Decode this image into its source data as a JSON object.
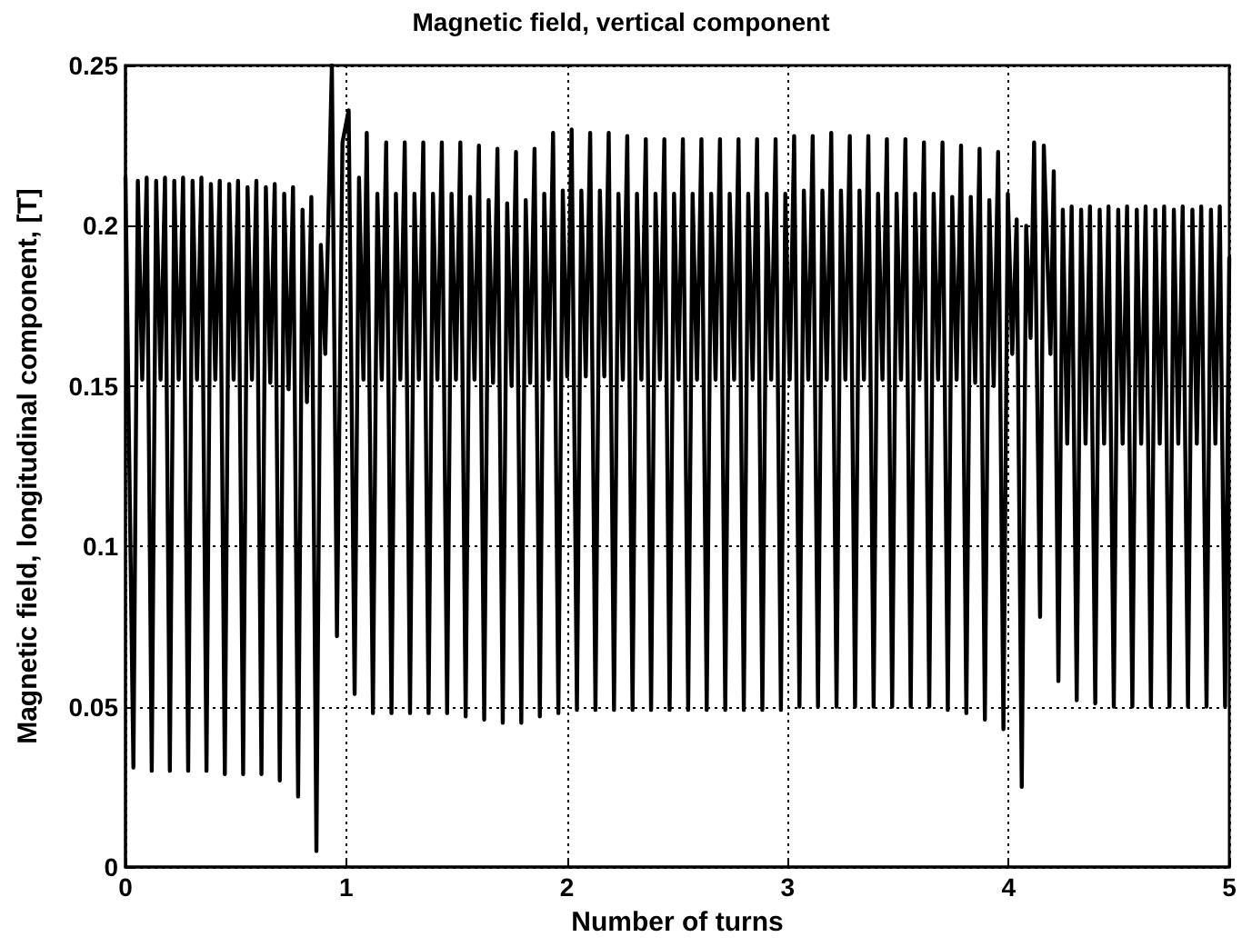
{
  "chart_data": {
    "type": "line",
    "title": "Magnetic field, vertical component",
    "xlabel": "Number of turns",
    "ylabel": "Magnetic field, longitudinal component, [T]",
    "xlim": [
      0,
      5
    ],
    "xticks": [
      0,
      1,
      2,
      3,
      4,
      5
    ],
    "ylim": [
      0,
      0.25
    ],
    "yticks": [
      0,
      0.05,
      0.1,
      0.15,
      0.2,
      0.25
    ],
    "grid": true,
    "marker": "none",
    "line_style": "solid",
    "series": [
      {
        "color": "#000000",
        "x": [
          0,
          0.036,
          0.056,
          0.076,
          0.096,
          0.119,
          0.139,
          0.159,
          0.179,
          0.201,
          0.221,
          0.241,
          0.261,
          0.284,
          0.304,
          0.324,
          0.344,
          0.367,
          0.387,
          0.407,
          0.427,
          0.45,
          0.47,
          0.49,
          0.51,
          0.533,
          0.553,
          0.573,
          0.593,
          0.616,
          0.636,
          0.656,
          0.676,
          0.699,
          0.719,
          0.739,
          0.759,
          0.782,
          0.802,
          0.822,
          0.842,
          0.865,
          0.885,
          0.905,
          0.935,
          0.958,
          0.983,
          1.011,
          1.038,
          1.058,
          1.078,
          1.093,
          1.121,
          1.141,
          1.161,
          1.181,
          1.205,
          1.225,
          1.245,
          1.265,
          1.289,
          1.309,
          1.329,
          1.349,
          1.373,
          1.393,
          1.413,
          1.433,
          1.457,
          1.477,
          1.497,
          1.517,
          1.541,
          1.561,
          1.581,
          1.601,
          1.625,
          1.645,
          1.665,
          1.685,
          1.709,
          1.729,
          1.749,
          1.769,
          1.793,
          1.813,
          1.833,
          1.853,
          1.877,
          1.897,
          1.917,
          1.937,
          1.961,
          1.981,
          2.001,
          2.021,
          2.045,
          2.065,
          2.085,
          2.105,
          2.129,
          2.149,
          2.169,
          2.189,
          2.213,
          2.233,
          2.253,
          2.273,
          2.297,
          2.317,
          2.337,
          2.357,
          2.381,
          2.401,
          2.421,
          2.441,
          2.465,
          2.485,
          2.505,
          2.525,
          2.549,
          2.569,
          2.589,
          2.609,
          2.633,
          2.653,
          2.673,
          2.693,
          2.717,
          2.737,
          2.757,
          2.777,
          2.801,
          2.821,
          2.841,
          2.861,
          2.885,
          2.905,
          2.925,
          2.945,
          2.969,
          2.989,
          3.009,
          3.029,
          3.053,
          3.073,
          3.093,
          3.113,
          3.137,
          3.157,
          3.177,
          3.197,
          3.221,
          3.241,
          3.261,
          3.281,
          3.305,
          3.325,
          3.345,
          3.365,
          3.389,
          3.409,
          3.429,
          3.449,
          3.473,
          3.493,
          3.513,
          3.533,
          3.557,
          3.577,
          3.597,
          3.617,
          3.641,
          3.661,
          3.681,
          3.701,
          3.725,
          3.745,
          3.765,
          3.785,
          3.809,
          3.829,
          3.849,
          3.869,
          3.893,
          3.913,
          3.933,
          3.953,
          3.977,
          3.997,
          4.017,
          4.037,
          4.06,
          4.08,
          4.1,
          4.116,
          4.143,
          4.16,
          4.19,
          4.205,
          4.226,
          4.246,
          4.266,
          4.286,
          4.309,
          4.329,
          4.349,
          4.369,
          4.393,
          4.413,
          4.433,
          4.453,
          4.477,
          4.497,
          4.517,
          4.537,
          4.561,
          4.581,
          4.601,
          4.621,
          4.645,
          4.665,
          4.685,
          4.705,
          4.729,
          4.749,
          4.769,
          4.789,
          4.813,
          4.833,
          4.853,
          4.873,
          4.897,
          4.917,
          4.937,
          4.957,
          4.981,
          5.0
        ],
        "values": [
          0.215,
          0.031,
          0.214,
          0.152,
          0.215,
          0.03,
          0.214,
          0.152,
          0.215,
          0.03,
          0.214,
          0.152,
          0.215,
          0.03,
          0.214,
          0.152,
          0.215,
          0.03,
          0.213,
          0.152,
          0.214,
          0.029,
          0.213,
          0.152,
          0.214,
          0.029,
          0.212,
          0.152,
          0.214,
          0.029,
          0.212,
          0.151,
          0.213,
          0.027,
          0.21,
          0.149,
          0.212,
          0.022,
          0.205,
          0.145,
          0.209,
          0.005,
          0.194,
          0.16,
          0.25,
          0.072,
          0.226,
          0.236,
          0.054,
          0.215,
          0.152,
          0.229,
          0.048,
          0.21,
          0.152,
          0.226,
          0.048,
          0.21,
          0.152,
          0.226,
          0.048,
          0.21,
          0.152,
          0.226,
          0.048,
          0.21,
          0.152,
          0.226,
          0.048,
          0.21,
          0.152,
          0.226,
          0.047,
          0.209,
          0.152,
          0.225,
          0.046,
          0.208,
          0.151,
          0.224,
          0.045,
          0.207,
          0.15,
          0.223,
          0.045,
          0.208,
          0.151,
          0.224,
          0.047,
          0.21,
          0.152,
          0.229,
          0.048,
          0.211,
          0.153,
          0.23,
          0.049,
          0.211,
          0.153,
          0.229,
          0.049,
          0.211,
          0.153,
          0.229,
          0.049,
          0.21,
          0.152,
          0.228,
          0.049,
          0.21,
          0.152,
          0.227,
          0.049,
          0.21,
          0.152,
          0.227,
          0.049,
          0.21,
          0.152,
          0.227,
          0.049,
          0.21,
          0.152,
          0.227,
          0.049,
          0.21,
          0.152,
          0.227,
          0.049,
          0.21,
          0.152,
          0.227,
          0.049,
          0.21,
          0.152,
          0.227,
          0.049,
          0.21,
          0.152,
          0.227,
          0.049,
          0.21,
          0.152,
          0.228,
          0.05,
          0.211,
          0.152,
          0.228,
          0.05,
          0.211,
          0.152,
          0.229,
          0.05,
          0.211,
          0.152,
          0.228,
          0.05,
          0.211,
          0.152,
          0.228,
          0.05,
          0.21,
          0.152,
          0.227,
          0.05,
          0.21,
          0.152,
          0.227,
          0.05,
          0.21,
          0.152,
          0.226,
          0.05,
          0.21,
          0.152,
          0.226,
          0.049,
          0.209,
          0.152,
          0.225,
          0.048,
          0.209,
          0.151,
          0.224,
          0.046,
          0.208,
          0.15,
          0.223,
          0.043,
          0.21,
          0.16,
          0.202,
          0.025,
          0.2,
          0.165,
          0.226,
          0.078,
          0.225,
          0.16,
          0.217,
          0.058,
          0.205,
          0.132,
          0.206,
          0.052,
          0.205,
          0.132,
          0.206,
          0.051,
          0.205,
          0.132,
          0.206,
          0.05,
          0.205,
          0.132,
          0.206,
          0.05,
          0.205,
          0.132,
          0.206,
          0.05,
          0.205,
          0.132,
          0.206,
          0.05,
          0.205,
          0.132,
          0.206,
          0.05,
          0.205,
          0.132,
          0.206,
          0.05,
          0.205,
          0.132,
          0.206,
          0.05,
          0.19
        ]
      }
    ]
  }
}
